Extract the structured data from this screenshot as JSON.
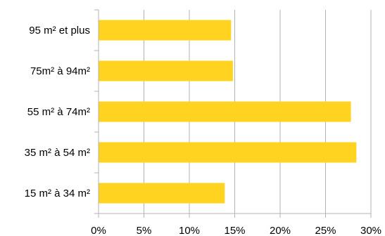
{
  "chart_data": {
    "type": "bar",
    "orientation": "horizontal",
    "categories": [
      "95 m² et plus",
      "75m² à 94m²",
      "55 m² à 74m²",
      "35 m² à 54 m²",
      "15 m² à 34 m²"
    ],
    "values": [
      14.6,
      14.8,
      27.8,
      28.4,
      13.9
    ],
    "xlim": [
      0,
      30
    ],
    "xticks": [
      "0%",
      "5%",
      "10%",
      "15%",
      "20%",
      "25%",
      "30%"
    ],
    "grid": true,
    "legend": "none",
    "title": "",
    "xlabel": "",
    "ylabel": "",
    "colors": {
      "bar": "#FFD320",
      "grid": "#B3B3B3",
      "axis": "#B3B3B3"
    }
  }
}
